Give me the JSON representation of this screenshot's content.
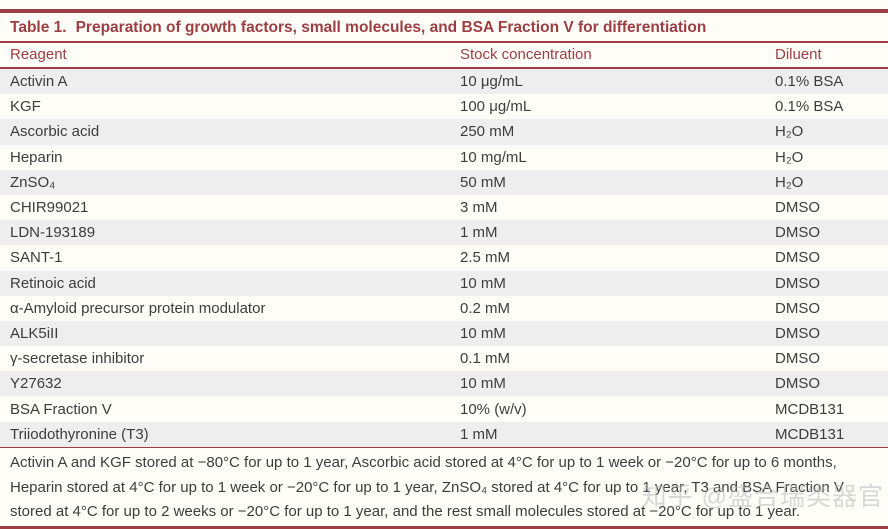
{
  "colors": {
    "accent": "#9c3e44",
    "row_alt": "#eeeeee",
    "body_text": "#3d3d3d",
    "page_bg": "#fffdf8",
    "watermark": "#b9b9b9"
  },
  "table": {
    "title_label": "Table 1.",
    "title_text": "Preparation of growth factors, small molecules, and BSA Fraction V for differentiation",
    "columns": {
      "reagent": "Reagent",
      "stock": "Stock concentration",
      "diluent": "Diluent"
    },
    "rows": [
      {
        "reagent": "Activin A",
        "stock": "10 μg/mL",
        "diluent": "0.1% BSA"
      },
      {
        "reagent": "KGF",
        "stock": "100 μg/mL",
        "diluent": "0.1% BSA"
      },
      {
        "reagent": "Ascorbic acid",
        "stock": "250 mM",
        "diluent": "H₂O"
      },
      {
        "reagent": "Heparin",
        "stock": "10 mg/mL",
        "diluent": "H₂O"
      },
      {
        "reagent": "ZnSO₄",
        "stock": "50 mM",
        "diluent": "H₂O"
      },
      {
        "reagent": "CHIR99021",
        "stock": "3 mM",
        "diluent": "DMSO"
      },
      {
        "reagent": "LDN-193189",
        "stock": "1 mM",
        "diluent": "DMSO"
      },
      {
        "reagent": "SANT-1",
        "stock": "2.5 mM",
        "diluent": "DMSO"
      },
      {
        "reagent": "Retinoic acid",
        "stock": "10 mM",
        "diluent": "DMSO"
      },
      {
        "reagent": "α-Amyloid precursor protein modulator",
        "stock": "0.2 mM",
        "diluent": "DMSO"
      },
      {
        "reagent": "ALK5iII",
        "stock": "10 mM",
        "diluent": "DMSO"
      },
      {
        "reagent": "γ-secretase inhibitor",
        "stock": "0.1 mM",
        "diluent": "DMSO"
      },
      {
        "reagent": "Y27632",
        "stock": "10 mM",
        "diluent": "DMSO"
      },
      {
        "reagent": "BSA Fraction V",
        "stock": "10% (w/v)",
        "diluent": "MCDB131"
      },
      {
        "reagent": "Triiodothyronine (T3)",
        "stock": "1 mM",
        "diluent": "MCDB131"
      }
    ],
    "footnote": "Activin A and KGF stored at −80°C for up to 1 year, Ascorbic acid stored at 4°C for up to 1 week or −20°C for up to 6 months, Heparin stored at 4°C for up to 1 week or −20°C for up to 1 year, ZnSO₄ stored at 4°C for up to 1 year, T3 and BSA Fraction V stored at 4°C for up to 2 weeks or −20°C for up to 1 year, and the rest small molecules stored at −20°C for up to 1 year."
  },
  "watermark": {
    "text": "知乎 @盛合瑞类器官"
  }
}
